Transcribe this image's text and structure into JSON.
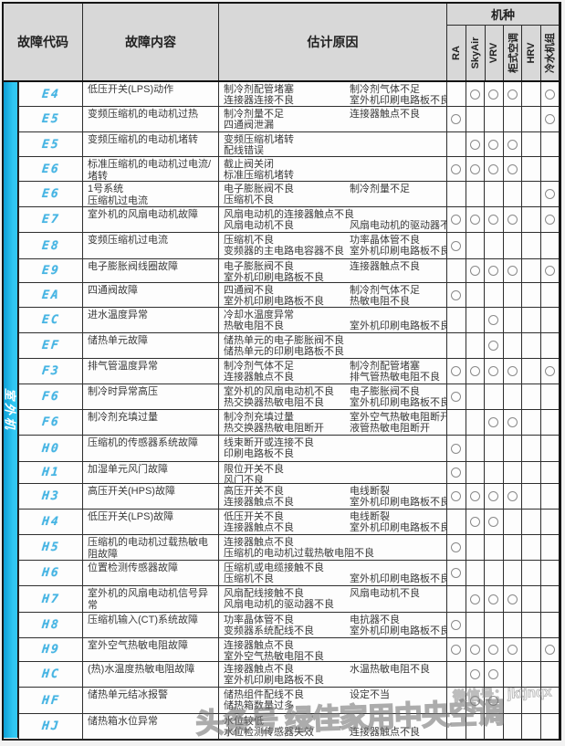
{
  "header": {
    "col_code": "故障代码",
    "col_content": "故障内容",
    "col_cause": "估计原因",
    "col_models": "机种",
    "model_columns": [
      "RA",
      "SkyAir",
      "VRV",
      "柜式空调",
      "HRV",
      "冷水机组"
    ]
  },
  "sidebar": {
    "group_label": "室外机"
  },
  "colors": {
    "bar_blue": "#31c7f2",
    "bar_blue_dark": "#0d9fd6",
    "code_blue": "#45b4e3",
    "header_gray": "#d8d8d8",
    "border_dark": "#161616"
  },
  "watermark": {
    "small_text": "微信号：jktjnqx",
    "big_text": "头条号 绿佳家用中央空调"
  },
  "rows": [
    {
      "code": "E4",
      "content": "低压开关(LPS)动作",
      "causes": [
        [
          "制冷剂配管堵塞",
          "制冷剂气体不足"
        ],
        [
          "连接器连接不良",
          "室外机印刷电路板不良"
        ]
      ],
      "models": [
        0,
        1,
        1,
        1,
        0,
        1
      ]
    },
    {
      "code": "E5",
      "content": "变频压缩机的电动机过热",
      "causes": [
        [
          "制冷剂量不足",
          "连接器触点不良"
        ],
        [
          "四通阀泄漏",
          ""
        ]
      ],
      "models": [
        1,
        0,
        0,
        0,
        0,
        1
      ]
    },
    {
      "code": "E5",
      "content": "变频压缩机的电动机堵转",
      "causes": [
        [
          "变频压缩机堵转",
          ""
        ],
        [
          "配线错误",
          ""
        ]
      ],
      "models": [
        0,
        1,
        1,
        1,
        0,
        0
      ]
    },
    {
      "code": "E6",
      "content": "标准压缩机的电动机过电流/堵转",
      "causes": [
        [
          "截止阀关闭",
          ""
        ],
        [
          "标准压缩机堵转",
          ""
        ]
      ],
      "models": [
        1,
        1,
        1,
        1,
        0,
        0
      ]
    },
    {
      "code": "E6",
      "content": "1号系统\n压缩机过电流",
      "causes": [
        [
          "电子膨胀阀不良",
          "制冷剂量不足"
        ],
        [
          "压缩机不良",
          ""
        ]
      ],
      "models": [
        0,
        0,
        0,
        0,
        0,
        1
      ]
    },
    {
      "code": "E7",
      "content": "室外机的风扇电动机故障",
      "causes": [
        [
          "风扇电动机的连接器触点不良",
          ""
        ],
        [
          "风扇电动机不良",
          "风扇电动机的驱动器不良"
        ]
      ],
      "models": [
        1,
        1,
        1,
        1,
        0,
        1
      ]
    },
    {
      "code": "E8",
      "content": "变频压缩机过电流",
      "causes": [
        [
          "压缩机不良",
          "功率晶体管不良"
        ],
        [
          "变频器的主电路电容器不良",
          "室外机印刷电路板不良"
        ]
      ],
      "models": [
        1,
        0,
        0,
        0,
        0,
        0
      ]
    },
    {
      "code": "E9",
      "content": "电子膨胀阀线圈故障",
      "causes": [
        [
          "电子膨胀阀不良",
          "连接器触点不良"
        ],
        [
          "室外机印刷电路板不良",
          ""
        ]
      ],
      "models": [
        0,
        1,
        1,
        1,
        0,
        1
      ]
    },
    {
      "code": "EA",
      "content": "四通阀故障",
      "causes": [
        [
          "四通阀不良",
          "制冷剂气体不足"
        ],
        [
          "室外机印刷电路板不良",
          "热敏电阻不良"
        ]
      ],
      "models": [
        1,
        0,
        0,
        0,
        0,
        0
      ]
    },
    {
      "code": "EC",
      "content": "进水温度异常",
      "causes": [
        [
          "冷却水温度异常",
          ""
        ],
        [
          "热敏电阻不良",
          "室外机印刷电路板不良"
        ]
      ],
      "models": [
        0,
        0,
        1,
        0,
        0,
        0
      ]
    },
    {
      "code": "EF",
      "content": "储热单元故障",
      "causes": [
        [
          "储热单元的电子膨胀阀不良",
          ""
        ],
        [
          "储热单元的印刷电路板不良",
          ""
        ]
      ],
      "models": [
        0,
        0,
        1,
        0,
        0,
        0
      ]
    },
    {
      "code": "F3",
      "content": "排气管温度异常",
      "causes": [
        [
          "制冷剂气体不足",
          "制冷剂配管堵塞"
        ],
        [
          "连接器触点不良",
          "排气管热敏电阻不良"
        ]
      ],
      "models": [
        1,
        1,
        1,
        1,
        0,
        1
      ]
    },
    {
      "code": "F6",
      "content": "制冷时异常高压",
      "causes": [
        [
          "室外机的风扇电动机不良",
          "电子膨胀阀不良"
        ],
        [
          "热交换器热敏电阻不良",
          "室外机印刷电路板不良"
        ]
      ],
      "models": [
        1,
        0,
        0,
        0,
        0,
        0
      ]
    },
    {
      "code": "F6",
      "content": "制冷剂充填过量",
      "causes": [
        [
          "制冷剂充填过量",
          "室外空气热敏电阻断开"
        ],
        [
          "热交换器热敏电阻断开",
          "液管热敏电阻断开"
        ]
      ],
      "models": [
        0,
        0,
        1,
        1,
        0,
        0
      ]
    },
    {
      "code": "H0",
      "content": "压缩机的传感器系统故障",
      "causes": [
        [
          "线束断开或连接不良",
          ""
        ],
        [
          "印刷电路板不良",
          ""
        ]
      ],
      "models": [
        1,
        0,
        0,
        0,
        0,
        0
      ]
    },
    {
      "code": "H1",
      "content": "加湿单元风门故障",
      "causes": [
        [
          "限位开关不良",
          ""
        ],
        [
          "风门不良",
          ""
        ]
      ],
      "models": [
        1,
        0,
        0,
        0,
        0,
        0
      ]
    },
    {
      "code": "H3",
      "content": "高压开关(HPS)故障",
      "causes": [
        [
          "高压开关不良",
          "电线断裂"
        ],
        [
          "连接器触点不良",
          "室外机印刷电路板不良"
        ]
      ],
      "models": [
        1,
        1,
        1,
        1,
        0,
        0
      ]
    },
    {
      "code": "H4",
      "content": "低压开关(LPS)故障",
      "causes": [
        [
          "低压开关不良",
          "电线断裂"
        ],
        [
          "连接器触点不良",
          "室外机印刷电路板不良"
        ]
      ],
      "models": [
        0,
        1,
        1,
        0,
        0,
        0
      ]
    },
    {
      "code": "H5",
      "content": "压缩机的电动机过载热敏电阻故障",
      "causes": [
        [
          "连接器触点不良",
          ""
        ],
        [
          "压缩机的电动机过载热敏电阻不良",
          ""
        ]
      ],
      "models": [
        1,
        0,
        0,
        0,
        0,
        0
      ]
    },
    {
      "code": "H6",
      "content": "位置检测传感器故障",
      "causes": [
        [
          "压缩机或电缆接触不良",
          ""
        ],
        [
          "压缩机不良",
          "室外机印刷电路板不良"
        ]
      ],
      "models": [
        1,
        0,
        0,
        0,
        0,
        0
      ]
    },
    {
      "code": "H7",
      "content": "室外机的风扇电动机信号异常",
      "causes": [
        [
          "风扇配线接触不良",
          "风扇电动机不良"
        ],
        [
          "风扇电动机的驱动器不良",
          ""
        ]
      ],
      "models": [
        0,
        1,
        1,
        1,
        0,
        0
      ]
    },
    {
      "code": "H8",
      "content": "压缩机输入(CT)系统故障",
      "causes": [
        [
          "功率晶体管不良",
          "电抗器不良"
        ],
        [
          "变频器系统配线不良",
          "室外机印刷电路板不良"
        ]
      ],
      "models": [
        1,
        0,
        0,
        0,
        0,
        0
      ]
    },
    {
      "code": "H9",
      "content": "室外空气热敏电阻故障",
      "causes": [
        [
          "连接器触点不良",
          ""
        ],
        [
          "室外空气热敏电阻不良",
          ""
        ]
      ],
      "models": [
        1,
        1,
        1,
        1,
        0,
        1
      ]
    },
    {
      "code": "HC",
      "content": "(热)水温度热敏电阻故障",
      "causes": [
        [
          "连接器触点不良",
          "水温热敏电阻不良"
        ],
        [
          "室外机印刷电路板不良",
          ""
        ]
      ],
      "models": [
        0,
        1,
        1,
        0,
        0,
        0
      ]
    },
    {
      "code": "HF",
      "content": "储热单元结冰报警",
      "causes": [
        [
          "储热组件配线不良",
          "设定不当"
        ],
        [
          "储热箱数量过多",
          ""
        ]
      ],
      "models": [
        0,
        1,
        1,
        0,
        0,
        0
      ]
    },
    {
      "code": "HJ",
      "content": "储热箱水位异常",
      "causes": [
        [
          "水位较低",
          ""
        ],
        [
          "水位检测传感器失效",
          "连接器触点不良"
        ]
      ],
      "models": [
        0,
        0,
        0,
        0,
        0,
        0
      ]
    }
  ]
}
